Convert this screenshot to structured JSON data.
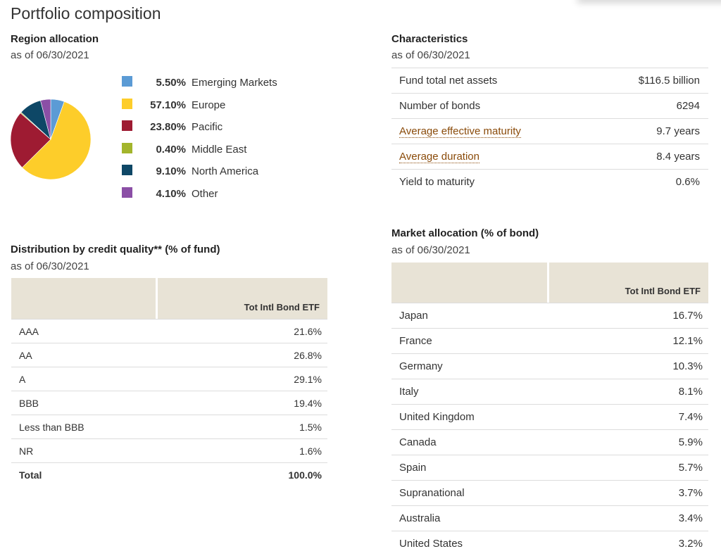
{
  "page_title": "Portfolio composition",
  "region": {
    "title": "Region allocation",
    "as_of": "as of 06/30/2021",
    "items": [
      {
        "pct": "5.50%",
        "label": "Emerging Markets",
        "value": 5.5,
        "color": "#5b9bd5"
      },
      {
        "pct": "57.10%",
        "label": "Europe",
        "value": 57.1,
        "color": "#fdcd2a"
      },
      {
        "pct": "23.80%",
        "label": "Pacific",
        "value": 23.8,
        "color": "#9e1b32"
      },
      {
        "pct": "0.40%",
        "label": "Middle East",
        "value": 0.4,
        "color": "#a3b52c"
      },
      {
        "pct": "9.10%",
        "label": "North America",
        "value": 9.1,
        "color": "#0e4766"
      },
      {
        "pct": "4.10%",
        "label": "Other",
        "value": 4.1,
        "color": "#8b4fa6"
      }
    ]
  },
  "characteristics": {
    "title": "Characteristics",
    "as_of": "as of 06/30/2021",
    "rows": [
      {
        "label": "Fund total net assets",
        "value": "$116.5 billion",
        "link": false
      },
      {
        "label": "Number of bonds",
        "value": "6294",
        "link": false
      },
      {
        "label": "Average effective maturity",
        "value": "9.7 years",
        "link": true
      },
      {
        "label": "Average duration",
        "value": "8.4 years",
        "link": true
      },
      {
        "label": "Yield to maturity",
        "value": "0.6%",
        "link": false
      }
    ]
  },
  "credit": {
    "title": "Distribution by credit quality** (% of fund)",
    "as_of": "as of 06/30/2021",
    "column_header": "Tot Intl Bond ETF",
    "rows": [
      {
        "label": "AAA",
        "value": "21.6%"
      },
      {
        "label": "AA",
        "value": "26.8%"
      },
      {
        "label": "A",
        "value": "29.1%"
      },
      {
        "label": "BBB",
        "value": "19.4%"
      },
      {
        "label": "Less than BBB",
        "value": "1.5%"
      },
      {
        "label": "NR",
        "value": "1.6%"
      }
    ],
    "total_label": "Total",
    "total_value": "100.0%"
  },
  "market": {
    "title": "Market allocation (% of bond)",
    "as_of": "as of 06/30/2021",
    "column_header": "Tot Intl Bond ETF",
    "rows": [
      {
        "label": "Japan",
        "value": "16.7%"
      },
      {
        "label": "France",
        "value": "12.1%"
      },
      {
        "label": "Germany",
        "value": "10.3%"
      },
      {
        "label": "Italy",
        "value": "8.1%"
      },
      {
        "label": "United Kingdom",
        "value": "7.4%"
      },
      {
        "label": "Canada",
        "value": "5.9%"
      },
      {
        "label": "Spain",
        "value": "5.7%"
      },
      {
        "label": "Supranational",
        "value": "3.7%"
      },
      {
        "label": "Australia",
        "value": "3.4%"
      },
      {
        "label": "United States",
        "value": "3.2%"
      }
    ]
  }
}
